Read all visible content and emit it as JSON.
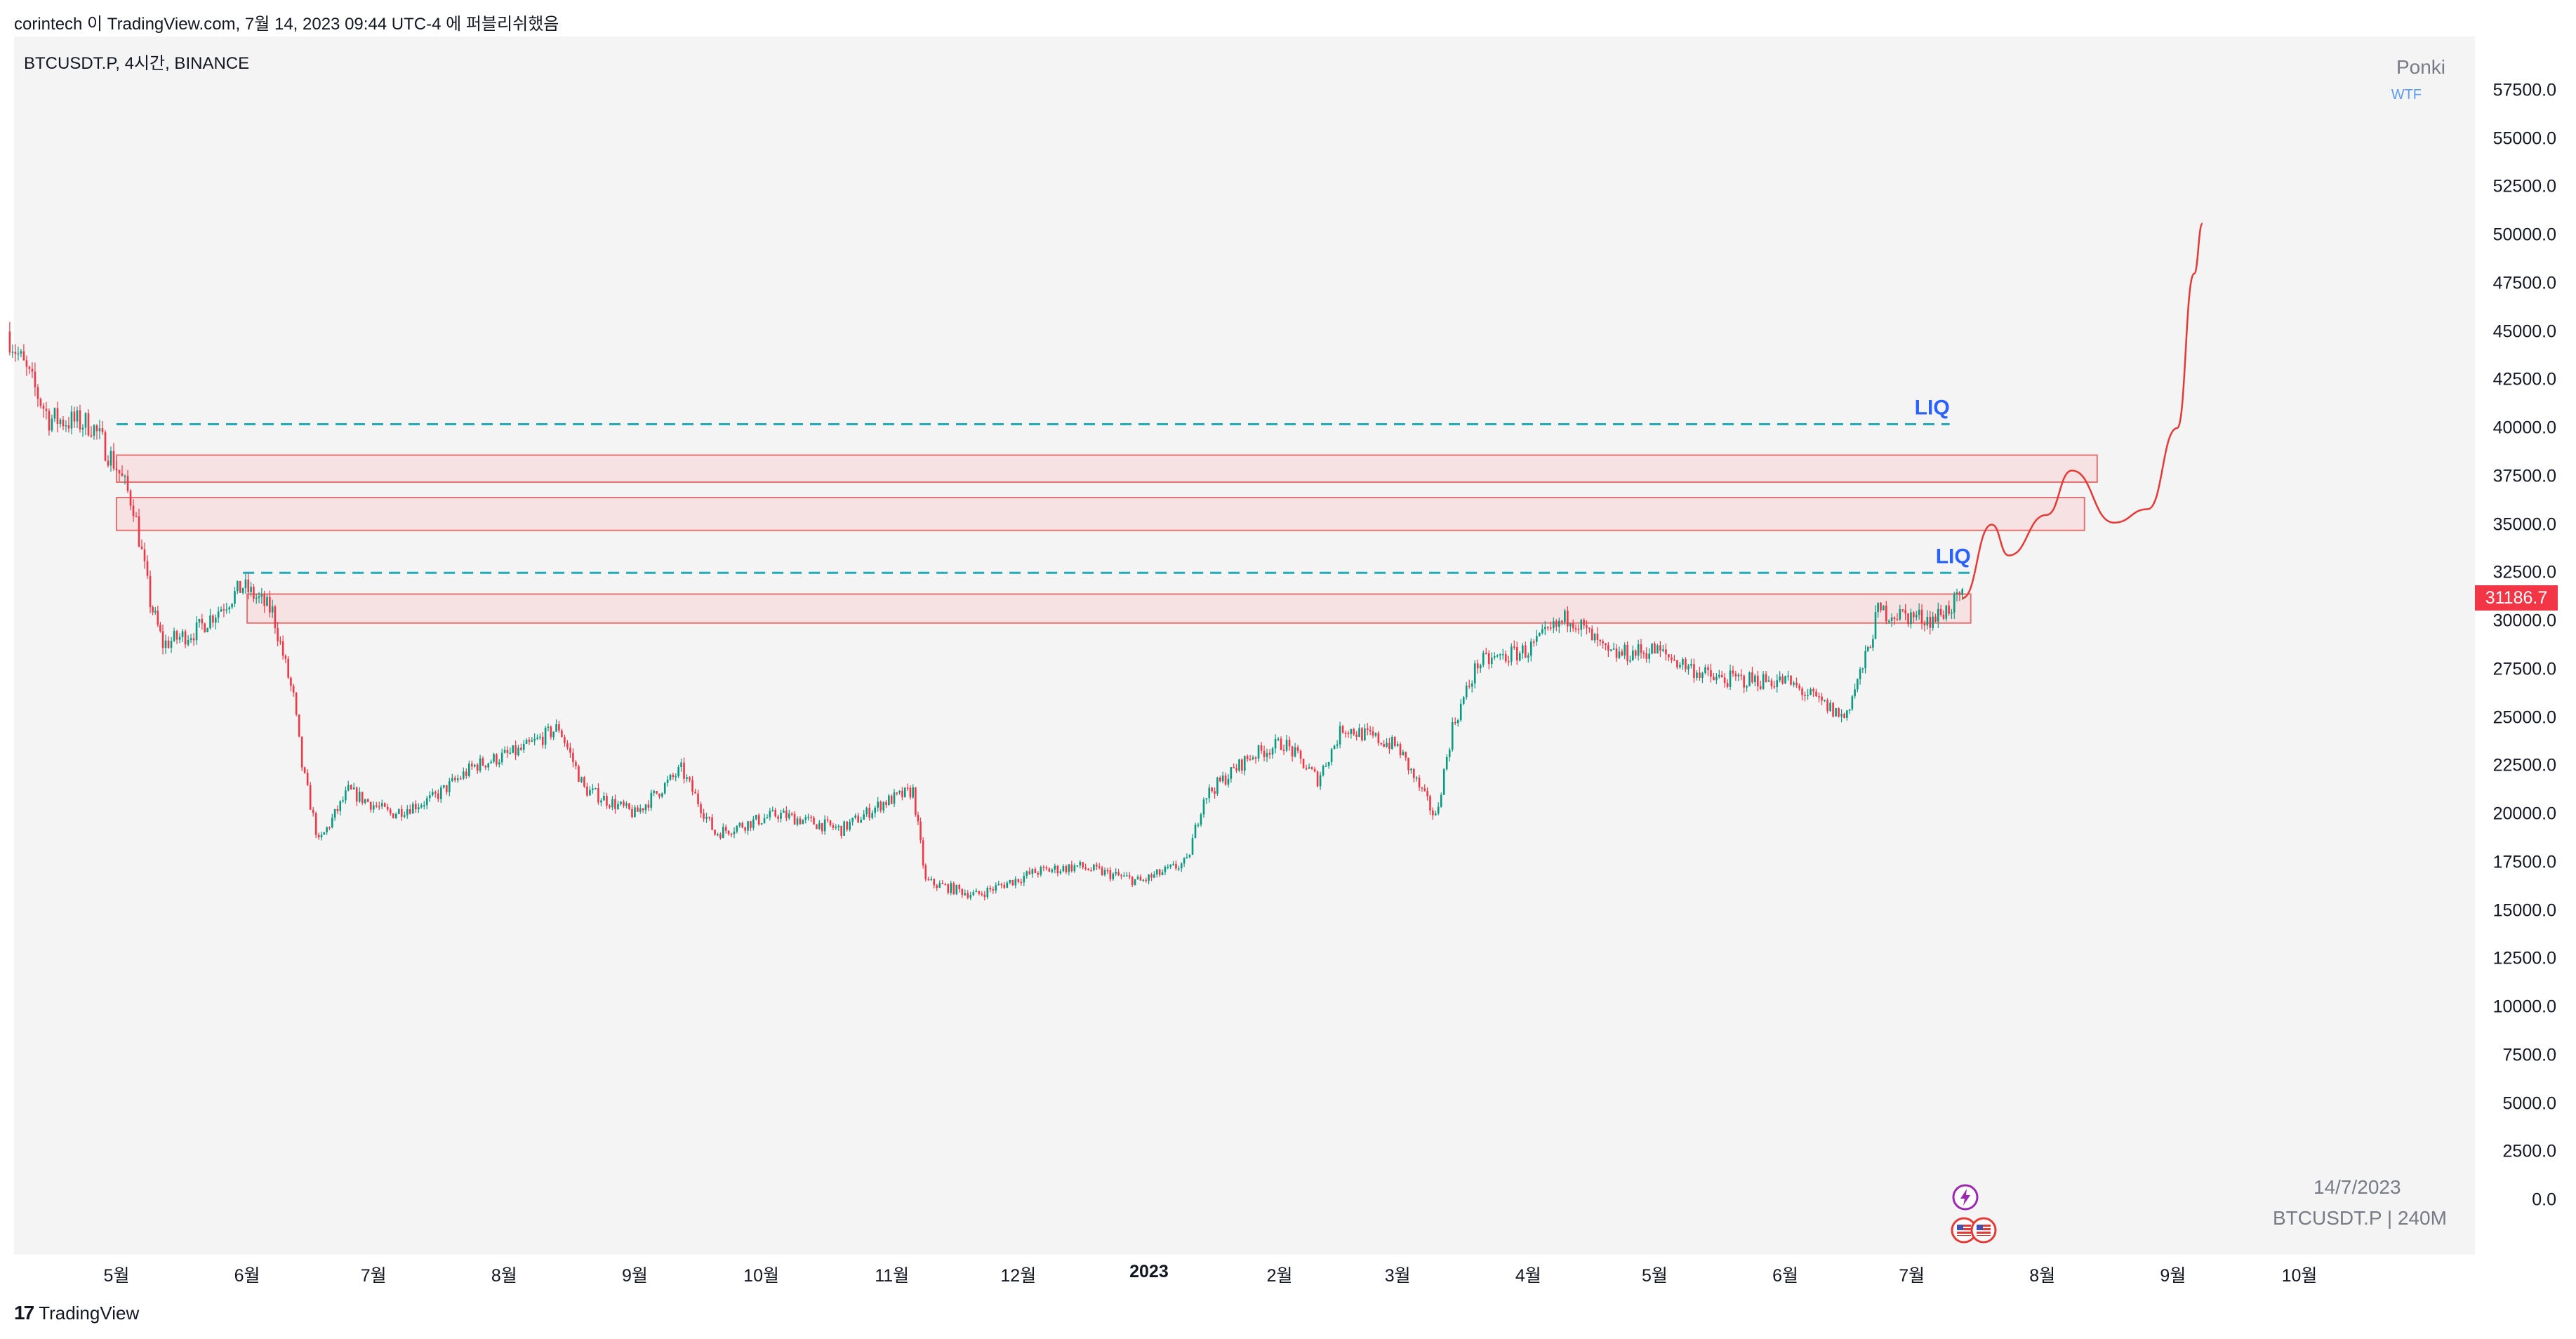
{
  "header": {
    "text": "corintech 이 TradingView.com, 7월 14, 2023 09:44 UTC-4 에 퍼블리쉬했음"
  },
  "symbol_label": "BTCUSDT.P, 4시간, BINANCE",
  "watermark": {
    "name": "Ponki",
    "sub": "WTF"
  },
  "corner": {
    "date": "14/7/2023",
    "symbol": "BTCUSDT.P | 240M"
  },
  "footer": {
    "logo": "17",
    "brand": "TradingView"
  },
  "last_price_label": "31186.7",
  "price_ticks": [
    "57500.0",
    "55000.0",
    "52500.0",
    "50000.0",
    "47500.0",
    "45000.0",
    "42500.0",
    "40000.0",
    "37500.0",
    "35000.0",
    "32500.0",
    "30000.0",
    "27500.0",
    "25000.0",
    "22500.0",
    "20000.0",
    "17500.0",
    "15000.0",
    "12500.0",
    "10000.0",
    "7500.0",
    "5000.0",
    "2500.0",
    "0.0"
  ],
  "time_ticks": [
    "5월",
    "6월",
    "7월",
    "8월",
    "9월",
    "10월",
    "11월",
    "12월",
    "2023",
    "2월",
    "3월",
    "4월",
    "5월",
    "6월",
    "7월",
    "8월",
    "9월",
    "10월"
  ],
  "colors": {
    "up": "#089981",
    "down": "#f23645",
    "liq_line": "#22aab5",
    "zone_fill": "#f7dcdc",
    "zone_border": "#e57373",
    "projection": "#e53935",
    "label": "#2962ff"
  },
  "chart_data": {
    "type": "line",
    "title": "BTCUSDT.P, 4시간, BINANCE",
    "ylim": [
      0,
      60000
    ],
    "y_scale": "linear",
    "x_range": [
      "2022-04-05",
      "2023-10-25"
    ],
    "grid": false,
    "series": [
      {
        "name": "BTCUSDT.P",
        "points": [
          [
            "2022-04-05",
            45000
          ],
          [
            "2022-04-15",
            40500
          ],
          [
            "2022-04-25",
            40200
          ],
          [
            "2022-05-01",
            38000
          ],
          [
            "2022-05-05",
            36000
          ],
          [
            "2022-05-09",
            31000
          ],
          [
            "2022-05-12",
            28800
          ],
          [
            "2022-05-20",
            29500
          ],
          [
            "2022-05-31",
            31800
          ],
          [
            "2022-06-07",
            30500
          ],
          [
            "2022-06-12",
            26000
          ],
          [
            "2022-06-14",
            22500
          ],
          [
            "2022-06-18",
            18500
          ],
          [
            "2022-06-25",
            21200
          ],
          [
            "2022-07-05",
            20000
          ],
          [
            "2022-07-15",
            20800
          ],
          [
            "2022-07-25",
            22500
          ],
          [
            "2022-08-05",
            23300
          ],
          [
            "2022-08-14",
            24500
          ],
          [
            "2022-08-20",
            21300
          ],
          [
            "2022-09-01",
            20000
          ],
          [
            "2022-09-12",
            22300
          ],
          [
            "2022-09-20",
            19000
          ],
          [
            "2022-10-05",
            20000
          ],
          [
            "2022-10-20",
            19200
          ],
          [
            "2022-10-30",
            20600
          ],
          [
            "2022-11-06",
            21200
          ],
          [
            "2022-11-09",
            16500
          ],
          [
            "2022-11-21",
            15800
          ],
          [
            "2022-12-05",
            17000
          ],
          [
            "2022-12-15",
            17300
          ],
          [
            "2022-12-30",
            16500
          ],
          [
            "2023-01-10",
            17500
          ],
          [
            "2023-01-14",
            20900
          ],
          [
            "2023-01-25",
            23000
          ],
          [
            "2023-02-02",
            23700
          ],
          [
            "2023-02-10",
            21800
          ],
          [
            "2023-02-16",
            24500
          ],
          [
            "2023-03-01",
            23500
          ],
          [
            "2023-03-10",
            19800
          ],
          [
            "2023-03-14",
            24500
          ],
          [
            "2023-03-20",
            27800
          ],
          [
            "2023-04-01",
            28500
          ],
          [
            "2023-04-11",
            30300
          ],
          [
            "2023-04-20",
            28200
          ],
          [
            "2023-05-01",
            28500
          ],
          [
            "2023-05-15",
            27000
          ],
          [
            "2023-06-01",
            26900
          ],
          [
            "2023-06-15",
            25000
          ],
          [
            "2023-06-20",
            28000
          ],
          [
            "2023-06-23",
            30500
          ],
          [
            "2023-07-06",
            30100
          ],
          [
            "2023-07-13",
            31186.7
          ]
        ]
      },
      {
        "name": "Projection",
        "points": [
          [
            "2023-07-13",
            31186.7
          ],
          [
            "2023-07-20",
            35000
          ],
          [
            "2023-07-24",
            33400
          ],
          [
            "2023-08-02",
            35500
          ],
          [
            "2023-08-08",
            37800
          ],
          [
            "2023-08-18",
            35100
          ],
          [
            "2023-08-26",
            35800
          ],
          [
            "2023-09-02",
            40000
          ],
          [
            "2023-09-06",
            48000
          ],
          [
            "2023-09-08",
            50600
          ]
        ]
      }
    ],
    "levels": [
      {
        "label": "LIQ",
        "price": 40200,
        "from": "2022-05-01",
        "to": "2023-07-10"
      },
      {
        "label": "LIQ",
        "price": 32500,
        "from": "2022-05-31",
        "to": "2023-07-15"
      }
    ],
    "zones": [
      {
        "from": "2022-05-01",
        "to": "2023-08-14",
        "low": 37200,
        "high": 38600
      },
      {
        "from": "2022-05-01",
        "to": "2023-08-11",
        "low": 34700,
        "high": 36400
      },
      {
        "from": "2022-06-01",
        "to": "2023-07-15",
        "low": 29900,
        "high": 31400
      }
    ]
  }
}
